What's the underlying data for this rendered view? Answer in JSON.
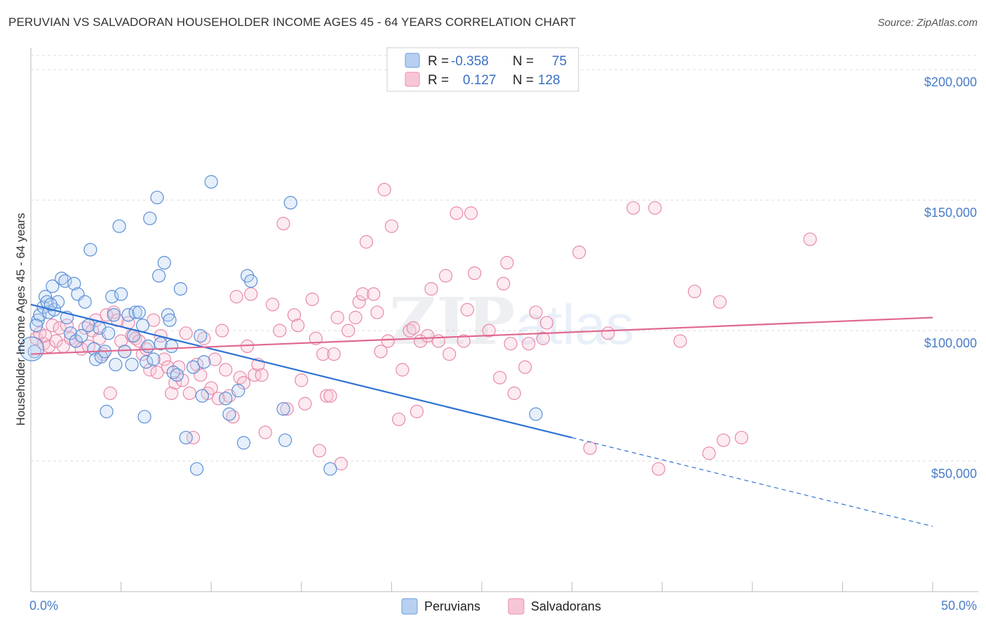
{
  "header": {
    "title": "PERUVIAN VS SALVADORAN HOUSEHOLDER INCOME AGES 45 - 64 YEARS CORRELATION CHART",
    "source": "Source: ZipAtlas.com"
  },
  "watermark": {
    "zip": "ZIP",
    "atlas": "atlas"
  },
  "legend_box": {
    "rows": [
      {
        "r_label": "R =",
        "r_value": "-0.358",
        "n_label": "N =",
        "n_value": "75",
        "color": "#8ab4e8"
      },
      {
        "r_label": "R =",
        "r_value": "0.127",
        "n_label": "N =",
        "n_value": "128",
        "color": "#f0a0bc"
      }
    ]
  },
  "bottom_legend": {
    "items": [
      "Peruvians",
      "Salvadorans"
    ]
  },
  "chart_data": {
    "type": "scatter",
    "title": "PERUVIAN VS SALVADORAN HOUSEHOLDER INCOME AGES 45 - 64 YEARS CORRELATION CHART",
    "ylabel": "Householder Income Ages 45 - 64 years",
    "xlabel": "",
    "xlim": [
      0,
      50
    ],
    "ylim": [
      0,
      210000
    ],
    "x_tick_labels": [
      "0.0%",
      "50.0%"
    ],
    "y_ticks": [
      {
        "value": 50000,
        "label": "$50,000"
      },
      {
        "value": 100000,
        "label": "$100,000"
      },
      {
        "value": 150000,
        "label": "$150,000"
      },
      {
        "value": 200000,
        "label": "$200,000"
      }
    ],
    "grid": true,
    "legend_position": "top-center",
    "series": [
      {
        "name": "Peruvians",
        "color": "#5b8fd6",
        "trend": {
          "x0": 0,
          "y0": 110000,
          "x1": 30,
          "y1": 59000,
          "x_dash_end": 50,
          "y_dash_end": 25000
        },
        "points": [
          [
            0.2,
            92000
          ],
          [
            0.4,
            104000
          ],
          [
            0.5,
            106000
          ],
          [
            0.7,
            109000
          ],
          [
            0.8,
            113000
          ],
          [
            0.9,
            111000
          ],
          [
            1.0,
            107000
          ],
          [
            1.2,
            117000
          ],
          [
            1.3,
            108000
          ],
          [
            1.5,
            111000
          ],
          [
            1.7,
            120000
          ],
          [
            1.9,
            119000
          ],
          [
            2.0,
            105000
          ],
          [
            2.2,
            99000
          ],
          [
            2.4,
            118000
          ],
          [
            2.5,
            96000
          ],
          [
            2.6,
            114000
          ],
          [
            2.8,
            98000
          ],
          [
            3.0,
            111000
          ],
          [
            3.2,
            102000
          ],
          [
            3.3,
            131000
          ],
          [
            3.5,
            93000
          ],
          [
            3.6,
            89000
          ],
          [
            3.8,
            101000
          ],
          [
            3.9,
            90000
          ],
          [
            4.1,
            92000
          ],
          [
            4.2,
            69000
          ],
          [
            4.3,
            99000
          ],
          [
            4.5,
            113000
          ],
          [
            4.6,
            106000
          ],
          [
            4.7,
            87000
          ],
          [
            4.9,
            140000
          ],
          [
            5.0,
            114000
          ],
          [
            5.2,
            92000
          ],
          [
            5.4,
            106000
          ],
          [
            5.6,
            87000
          ],
          [
            5.7,
            98000
          ],
          [
            5.8,
            107000
          ],
          [
            6.0,
            107000
          ],
          [
            6.2,
            102000
          ],
          [
            6.3,
            67000
          ],
          [
            6.4,
            88000
          ],
          [
            6.5,
            94000
          ],
          [
            6.6,
            143000
          ],
          [
            6.8,
            89000
          ],
          [
            7.0,
            151000
          ],
          [
            7.1,
            121000
          ],
          [
            7.2,
            95000
          ],
          [
            7.4,
            126000
          ],
          [
            7.6,
            106000
          ],
          [
            7.7,
            104000
          ],
          [
            7.8,
            94000
          ],
          [
            7.9,
            84000
          ],
          [
            8.1,
            83000
          ],
          [
            8.3,
            116000
          ],
          [
            8.6,
            59000
          ],
          [
            9.0,
            86000
          ],
          [
            9.2,
            47000
          ],
          [
            9.4,
            98000
          ],
          [
            9.5,
            75000
          ],
          [
            9.6,
            88000
          ],
          [
            10.0,
            157000
          ],
          [
            10.8,
            74000
          ],
          [
            11.0,
            68000
          ],
          [
            11.5,
            77000
          ],
          [
            11.8,
            57000
          ],
          [
            12.0,
            121000
          ],
          [
            12.2,
            119000
          ],
          [
            14.0,
            70000
          ],
          [
            14.1,
            58000
          ],
          [
            14.4,
            149000
          ],
          [
            16.6,
            47000
          ],
          [
            28.0,
            68000
          ],
          [
            0.3,
            102000
          ],
          [
            1.1,
            110000
          ]
        ]
      },
      {
        "name": "Salvadorans",
        "color": "#ee8fb0",
        "trend": {
          "x0": 0,
          "y0": 91000,
          "x1": 50,
          "y1": 105000
        },
        "points": [
          [
            0.3,
            97000
          ],
          [
            0.5,
            99000
          ],
          [
            0.7,
            95000
          ],
          [
            0.8,
            98000
          ],
          [
            1.0,
            94000
          ],
          [
            1.2,
            102000
          ],
          [
            1.4,
            96000
          ],
          [
            1.6,
            101000
          ],
          [
            1.8,
            94000
          ],
          [
            2.0,
            102000
          ],
          [
            2.2,
            97000
          ],
          [
            2.5,
            96000
          ],
          [
            2.8,
            93000
          ],
          [
            3.0,
            101000
          ],
          [
            3.2,
            94000
          ],
          [
            3.4,
            100000
          ],
          [
            3.6,
            104000
          ],
          [
            3.8,
            97000
          ],
          [
            4.0,
            91000
          ],
          [
            4.2,
            106000
          ],
          [
            4.4,
            76000
          ],
          [
            4.6,
            107000
          ],
          [
            4.8,
            104000
          ],
          [
            5.0,
            96000
          ],
          [
            5.2,
            92000
          ],
          [
            5.4,
            103000
          ],
          [
            5.6,
            98000
          ],
          [
            5.8,
            97000
          ],
          [
            6.0,
            96000
          ],
          [
            6.2,
            91000
          ],
          [
            6.4,
            93000
          ],
          [
            6.6,
            85000
          ],
          [
            6.8,
            104000
          ],
          [
            7.0,
            84000
          ],
          [
            7.2,
            98000
          ],
          [
            7.4,
            89000
          ],
          [
            7.6,
            86000
          ],
          [
            7.8,
            76000
          ],
          [
            8.0,
            80000
          ],
          [
            8.2,
            86000
          ],
          [
            8.4,
            81000
          ],
          [
            8.6,
            99000
          ],
          [
            8.8,
            76000
          ],
          [
            9.0,
            59000
          ],
          [
            9.2,
            87000
          ],
          [
            9.4,
            83000
          ],
          [
            9.6,
            97000
          ],
          [
            9.8,
            76000
          ],
          [
            10.0,
            78000
          ],
          [
            10.2,
            89000
          ],
          [
            10.4,
            74000
          ],
          [
            10.6,
            100000
          ],
          [
            10.8,
            85000
          ],
          [
            11.0,
            75000
          ],
          [
            11.2,
            67000
          ],
          [
            11.4,
            113000
          ],
          [
            11.6,
            82000
          ],
          [
            11.8,
            80000
          ],
          [
            12.0,
            94000
          ],
          [
            12.2,
            114000
          ],
          [
            12.4,
            83000
          ],
          [
            12.6,
            87000
          ],
          [
            12.8,
            83000
          ],
          [
            13.0,
            61000
          ],
          [
            13.4,
            110000
          ],
          [
            13.8,
            100000
          ],
          [
            14.0,
            141000
          ],
          [
            14.2,
            70000
          ],
          [
            14.6,
            106000
          ],
          [
            14.8,
            102000
          ],
          [
            15.0,
            81000
          ],
          [
            15.2,
            72000
          ],
          [
            15.6,
            112000
          ],
          [
            15.8,
            97000
          ],
          [
            16.0,
            54000
          ],
          [
            16.2,
            91000
          ],
          [
            16.4,
            75000
          ],
          [
            16.6,
            75000
          ],
          [
            16.8,
            91000
          ],
          [
            17.0,
            105000
          ],
          [
            17.2,
            49000
          ],
          [
            17.6,
            100000
          ],
          [
            18.0,
            105000
          ],
          [
            18.2,
            111000
          ],
          [
            18.4,
            114000
          ],
          [
            18.6,
            134000
          ],
          [
            19.0,
            114000
          ],
          [
            19.2,
            107000
          ],
          [
            19.4,
            92000
          ],
          [
            19.6,
            154000
          ],
          [
            19.8,
            96000
          ],
          [
            20.0,
            140000
          ],
          [
            20.4,
            66000
          ],
          [
            20.6,
            85000
          ],
          [
            21.0,
            100000
          ],
          [
            21.2,
            101000
          ],
          [
            21.4,
            69000
          ],
          [
            21.6,
            96000
          ],
          [
            22.0,
            98000
          ],
          [
            22.2,
            116000
          ],
          [
            22.6,
            96000
          ],
          [
            23.0,
            121000
          ],
          [
            23.2,
            91000
          ],
          [
            23.6,
            145000
          ],
          [
            24.0,
            96000
          ],
          [
            24.2,
            108000
          ],
          [
            24.4,
            145000
          ],
          [
            24.6,
            122000
          ],
          [
            25.4,
            100000
          ],
          [
            26.0,
            82000
          ],
          [
            26.2,
            118000
          ],
          [
            26.4,
            126000
          ],
          [
            26.6,
            95000
          ],
          [
            26.8,
            76000
          ],
          [
            27.4,
            86000
          ],
          [
            27.6,
            95000
          ],
          [
            28.0,
            107000
          ],
          [
            28.4,
            97000
          ],
          [
            28.6,
            103000
          ],
          [
            30.4,
            130000
          ],
          [
            31.0,
            55000
          ],
          [
            32.0,
            99000
          ],
          [
            33.4,
            147000
          ],
          [
            34.6,
            147000
          ],
          [
            34.8,
            47000
          ],
          [
            36.0,
            96000
          ],
          [
            36.8,
            115000
          ],
          [
            37.6,
            53000
          ],
          [
            38.2,
            111000
          ],
          [
            38.4,
            58000
          ],
          [
            39.4,
            59000
          ],
          [
            43.2,
            135000
          ]
        ]
      }
    ]
  }
}
